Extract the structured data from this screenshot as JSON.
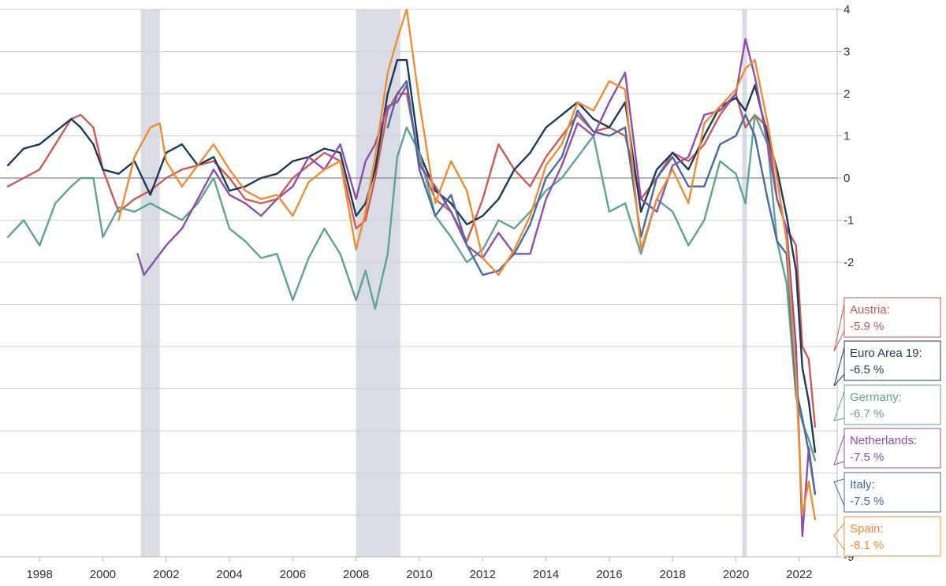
{
  "chart_data": {
    "type": "line",
    "title": "",
    "xlabel": "",
    "ylabel": "",
    "xlim": [
      1997.0,
      2023.2
    ],
    "ylim": [
      -9,
      4
    ],
    "grid": true,
    "x_ticks": [
      "1998",
      "2000",
      "2002",
      "2004",
      "2006",
      "2008",
      "2010",
      "2012",
      "2014",
      "2016",
      "2018",
      "2020",
      "2022"
    ],
    "y_ticks": [
      "4",
      "3",
      "2",
      "1",
      "0",
      "-1",
      "-2",
      "-9"
    ],
    "recessions": [
      [
        2001.2,
        2001.8
      ],
      [
        2008.0,
        2009.4
      ],
      [
        2020.2,
        2020.33
      ]
    ],
    "series": [
      {
        "name": "Austria",
        "label_name": "Austria:",
        "label_value": "-5.9 %",
        "color": "#cf5a55",
        "x": [
          1997.0,
          1997.5,
          1998.0,
          1998.5,
          1999.0,
          1999.3,
          1999.7,
          2000.0,
          2000.5,
          2001.0,
          2001.5,
          2002.0,
          2002.5,
          2003.0,
          2003.5,
          2004.0,
          2004.5,
          2005.0,
          2005.5,
          2006.0,
          2006.5,
          2007.0,
          2007.5,
          2008.0,
          2008.3,
          2008.6,
          2009.0,
          2009.3,
          2009.6,
          2010.0,
          2010.5,
          2011.0,
          2011.5,
          2012.0,
          2012.5,
          2013.0,
          2013.5,
          2014.0,
          2014.5,
          2015.0,
          2015.5,
          2016.0,
          2016.5,
          2017.0,
          2017.5,
          2018.0,
          2018.5,
          2019.0,
          2019.5,
          2020.0,
          2020.3,
          2020.6,
          2021.0,
          2021.3,
          2021.6,
          2021.9,
          2022.1,
          2022.3,
          2022.5
        ],
        "values": [
          -0.2,
          0.0,
          0.2,
          0.8,
          1.4,
          1.5,
          1.2,
          0.2,
          -0.8,
          -0.5,
          -0.3,
          0.0,
          0.2,
          0.3,
          0.4,
          0.0,
          -0.5,
          -0.6,
          -0.5,
          0.0,
          0.3,
          0.6,
          0.4,
          -1.2,
          -1.0,
          0.0,
          1.6,
          2.0,
          2.0,
          0.4,
          -0.5,
          -0.8,
          -1.5,
          -0.5,
          0.8,
          0.2,
          -0.2,
          0.5,
          1.0,
          1.5,
          1.1,
          1.2,
          1.0,
          -0.5,
          0.0,
          0.6,
          0.4,
          0.8,
          1.5,
          2.0,
          1.2,
          1.5,
          1.2,
          -0.5,
          -1.2,
          -1.6,
          -4.0,
          -4.3,
          -5.9
        ]
      },
      {
        "name": "Euro Area 19",
        "label_name": "Euro Area 19:",
        "label_value": "-6.5 %",
        "color": "#1b3a5c",
        "x": [
          1997.0,
          1997.5,
          1998.0,
          1998.5,
          1999.0,
          1999.3,
          1999.7,
          2000.0,
          2000.5,
          2001.0,
          2001.5,
          2002.0,
          2002.5,
          2003.0,
          2003.5,
          2004.0,
          2004.5,
          2005.0,
          2005.5,
          2006.0,
          2006.5,
          2007.0,
          2007.5,
          2008.0,
          2008.3,
          2008.6,
          2009.0,
          2009.3,
          2009.6,
          2010.0,
          2010.5,
          2011.0,
          2011.5,
          2012.0,
          2012.5,
          2013.0,
          2013.5,
          2014.0,
          2014.5,
          2015.0,
          2015.5,
          2016.0,
          2016.5,
          2017.0,
          2017.5,
          2018.0,
          2018.5,
          2019.0,
          2019.5,
          2020.0,
          2020.3,
          2020.6,
          2021.0,
          2021.3,
          2021.6,
          2021.9,
          2022.1,
          2022.3,
          2022.5
        ],
        "values": [
          0.3,
          0.7,
          0.8,
          1.1,
          1.4,
          1.2,
          0.8,
          0.2,
          0.1,
          0.4,
          -0.4,
          0.6,
          0.8,
          0.3,
          0.5,
          -0.3,
          -0.2,
          0.0,
          0.1,
          0.4,
          0.5,
          0.7,
          0.6,
          -0.9,
          -0.6,
          0.2,
          2.0,
          2.8,
          2.8,
          0.6,
          -0.3,
          -0.6,
          -1.1,
          -0.9,
          -0.5,
          0.2,
          0.6,
          1.2,
          1.5,
          1.8,
          1.4,
          1.2,
          1.8,
          -0.8,
          0.2,
          0.6,
          0.2,
          1.0,
          1.7,
          1.9,
          1.6,
          2.2,
          1.0,
          0.2,
          -0.9,
          -2.2,
          -4.5,
          -5.3,
          -6.5
        ]
      },
      {
        "name": "Germany",
        "label_name": "Germany:",
        "label_value": "-6.7 %",
        "color": "#5da592",
        "x": [
          1997.0,
          1997.5,
          1998.0,
          1998.5,
          1999.0,
          1999.3,
          1999.7,
          2000.0,
          2000.5,
          2001.0,
          2001.5,
          2002.0,
          2002.5,
          2003.0,
          2003.5,
          2004.0,
          2004.5,
          2005.0,
          2005.5,
          2006.0,
          2006.5,
          2007.0,
          2007.5,
          2008.0,
          2008.3,
          2008.6,
          2009.0,
          2009.3,
          2009.6,
          2010.0,
          2010.5,
          2011.0,
          2011.5,
          2012.0,
          2012.5,
          2013.0,
          2013.5,
          2014.0,
          2014.5,
          2015.0,
          2015.5,
          2016.0,
          2016.5,
          2017.0,
          2017.5,
          2018.0,
          2018.5,
          2019.0,
          2019.5,
          2020.0,
          2020.3,
          2020.6,
          2021.0,
          2021.3,
          2021.6,
          2021.9,
          2022.1,
          2022.3,
          2022.5
        ],
        "values": [
          -1.4,
          -1.0,
          -1.6,
          -0.6,
          -0.2,
          0.0,
          0.0,
          -1.4,
          -0.7,
          -0.8,
          -0.6,
          -0.8,
          -1.0,
          -0.6,
          0.0,
          -1.2,
          -1.5,
          -1.9,
          -1.8,
          -2.9,
          -1.9,
          -1.2,
          -1.8,
          -2.9,
          -2.2,
          -3.1,
          -1.8,
          0.5,
          1.2,
          0.6,
          -0.9,
          -1.4,
          -2.0,
          -1.7,
          -1.0,
          -1.2,
          -0.8,
          -0.3,
          0.0,
          0.5,
          1.0,
          -0.8,
          -0.6,
          -1.8,
          -0.5,
          -0.8,
          -1.6,
          -1.0,
          0.4,
          0.1,
          -0.6,
          1.5,
          0.8,
          -1.5,
          -2.5,
          -5.2,
          -5.8,
          -6.2,
          -6.7
        ]
      },
      {
        "name": "Netherlands",
        "label_name": "Netherlands:",
        "label_value": "-7.5 %",
        "color": "#8d4fac",
        "x": [
          2001.1,
          2001.3,
          2001.6,
          2002.0,
          2002.5,
          2003.0,
          2003.5,
          2004.0,
          2004.5,
          2005.0,
          2005.5,
          2006.0,
          2006.5,
          2007.0,
          2007.5,
          2008.0,
          2008.3,
          2008.6,
          2009.0,
          2009.3,
          2009.6,
          2010.0,
          2010.5,
          2011.0,
          2011.5,
          2012.0,
          2012.5,
          2013.0,
          2013.5,
          2014.0,
          2014.5,
          2015.0,
          2015.5,
          2016.0,
          2016.5,
          2017.0,
          2017.5,
          2018.0,
          2018.5,
          2019.0,
          2019.5,
          2020.0,
          2020.3,
          2020.6,
          2021.0,
          2021.3,
          2021.6,
          2021.9,
          2022.1,
          2022.3,
          2022.5
        ],
        "values": [
          -1.8,
          -2.3,
          -2.0,
          -1.6,
          -1.2,
          -0.5,
          0.2,
          -0.4,
          -0.6,
          -0.9,
          -0.5,
          -0.2,
          0.5,
          0.2,
          0.8,
          -0.5,
          0.4,
          0.8,
          1.7,
          1.8,
          2.2,
          0.3,
          -0.2,
          -0.8,
          -1.6,
          -1.9,
          -1.3,
          -1.8,
          -1.8,
          -0.5,
          0.3,
          1.3,
          1.0,
          1.8,
          2.5,
          -0.5,
          -0.8,
          0.3,
          0.5,
          1.5,
          1.6,
          2.0,
          3.3,
          2.4,
          0.8,
          -0.5,
          -1.2,
          -4.0,
          -8.5,
          -6.4,
          -7.5
        ]
      },
      {
        "name": "Italy",
        "label_name": "Italy:",
        "label_value": "-7.5 %",
        "color": "#4a6aa6",
        "x": [
          2009.0,
          2009.3,
          2009.6,
          2010.0,
          2010.5,
          2011.0,
          2011.5,
          2012.0,
          2012.5,
          2013.0,
          2013.5,
          2014.0,
          2014.5,
          2015.0,
          2015.5,
          2016.0,
          2016.5,
          2017.0,
          2017.5,
          2018.0,
          2018.5,
          2019.0,
          2019.5,
          2020.0,
          2020.3,
          2020.6,
          2021.0,
          2021.3,
          2021.6,
          2021.9,
          2022.1,
          2022.3,
          2022.5
        ],
        "values": [
          1.2,
          2.0,
          2.3,
          0.2,
          -0.9,
          -0.4,
          -1.6,
          -2.3,
          -2.2,
          -1.8,
          -1.1,
          0.0,
          0.5,
          1.6,
          1.1,
          1.0,
          1.2,
          -1.4,
          0.0,
          0.5,
          -0.2,
          -0.2,
          0.8,
          1.0,
          1.5,
          1.0,
          -0.5,
          -1.5,
          -1.8,
          -5.0,
          -5.7,
          -6.5,
          -7.5
        ]
      },
      {
        "name": "Spain",
        "label_name": "Spain:",
        "label_value": "-8.1 %",
        "color": "#f08d33",
        "x": [
          2000.5,
          2001.0,
          2001.5,
          2001.8,
          2002.0,
          2002.5,
          2003.0,
          2003.5,
          2004.0,
          2004.5,
          2005.0,
          2005.5,
          2006.0,
          2006.5,
          2007.0,
          2007.5,
          2008.0,
          2008.3,
          2008.6,
          2009.0,
          2009.3,
          2009.6,
          2010.0,
          2010.5,
          2011.0,
          2011.5,
          2012.0,
          2012.5,
          2013.0,
          2013.5,
          2014.0,
          2014.5,
          2015.0,
          2015.5,
          2016.0,
          2016.5,
          2017.0,
          2017.5,
          2018.0,
          2018.5,
          2019.0,
          2019.5,
          2020.0,
          2020.3,
          2020.6,
          2021.0,
          2021.3,
          2021.6,
          2021.9,
          2022.1,
          2022.3,
          2022.5
        ],
        "values": [
          -1.0,
          0.5,
          1.2,
          1.3,
          0.4,
          -0.2,
          0.3,
          0.8,
          0.2,
          -0.3,
          -0.5,
          -0.4,
          -0.9,
          -0.1,
          0.2,
          0.4,
          -1.7,
          -0.8,
          0.5,
          2.5,
          3.3,
          4.0,
          1.8,
          -0.6,
          0.4,
          -0.3,
          -1.9,
          -2.3,
          -1.7,
          -0.9,
          0.3,
          0.8,
          1.8,
          1.6,
          2.3,
          2.1,
          -1.7,
          -0.5,
          0.2,
          -0.6,
          1.3,
          1.7,
          2.1,
          2.6,
          2.8,
          1.3,
          0.0,
          -1.5,
          -4.7,
          -8.0,
          -7.2,
          -8.1
        ]
      }
    ]
  }
}
